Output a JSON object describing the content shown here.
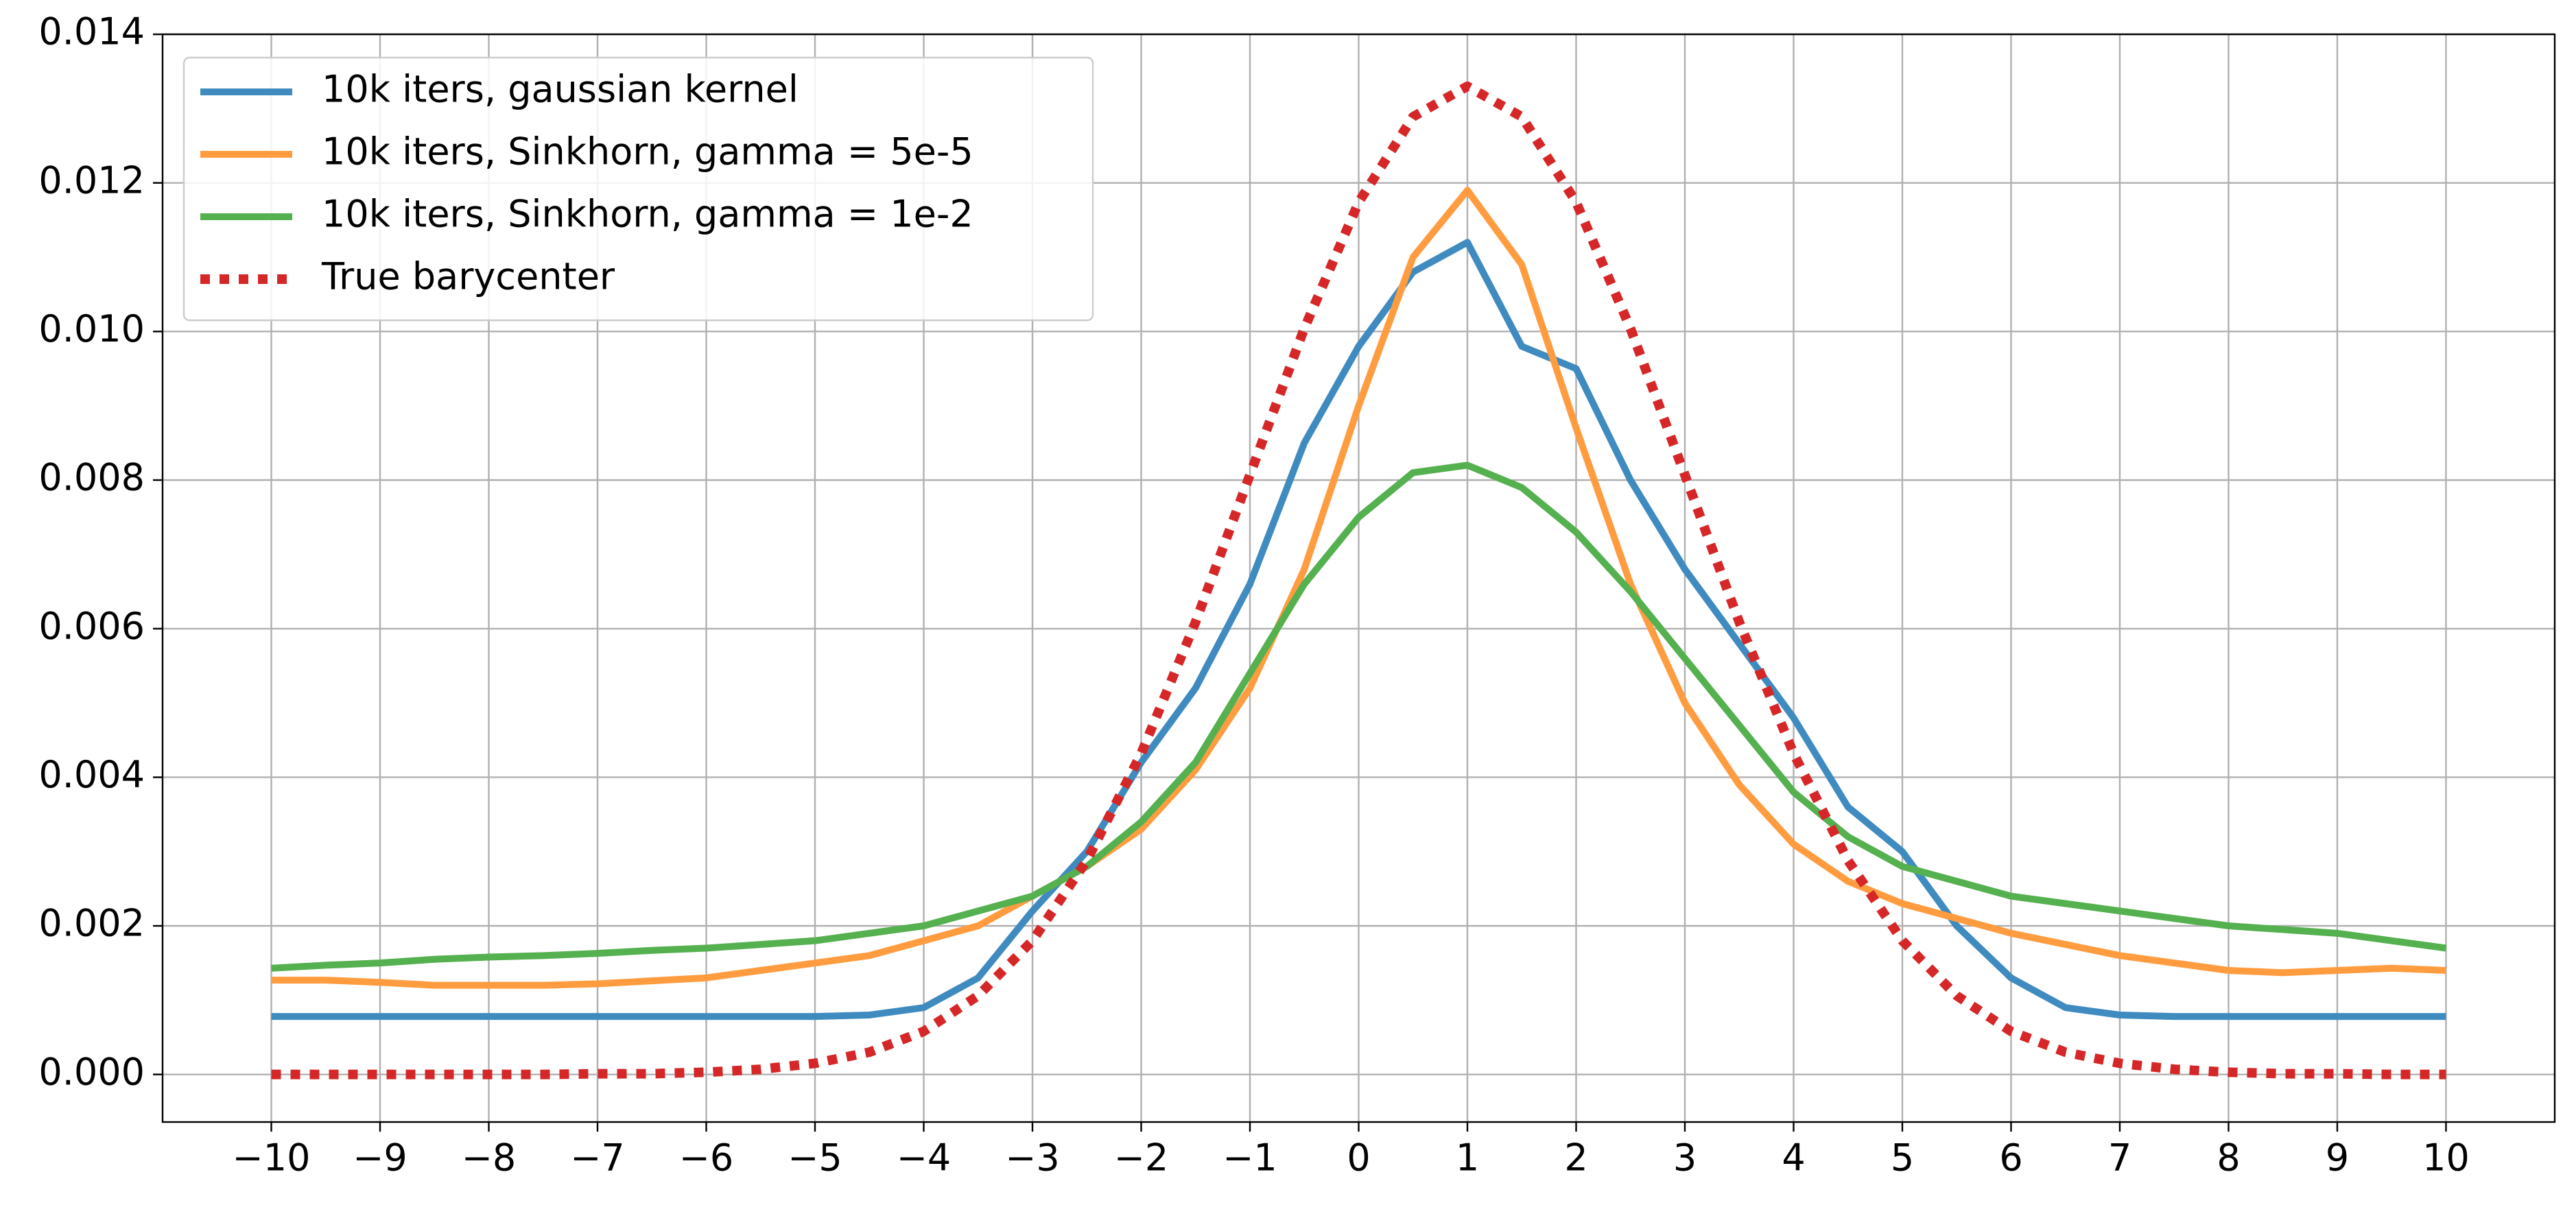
{
  "chart_data": {
    "type": "line",
    "x": [
      -10,
      -9.5,
      -9,
      -8.5,
      -8,
      -7.5,
      -7,
      -6.5,
      -6,
      -5.5,
      -5,
      -4.5,
      -4,
      -3.5,
      -3,
      -2.5,
      -2,
      -1.5,
      -1,
      -0.5,
      0,
      0.5,
      1,
      1.5,
      2,
      2.5,
      3,
      3.5,
      4,
      4.5,
      5,
      5.5,
      6,
      6.5,
      7,
      7.5,
      8,
      8.5,
      9,
      9.5,
      10
    ],
    "series": [
      {
        "name": "10k iters, gaussian kernel",
        "color": "#3f8bc0",
        "linestyle": "solid",
        "values": [
          0.00078,
          0.00078,
          0.00078,
          0.00078,
          0.00078,
          0.00078,
          0.00078,
          0.00078,
          0.00078,
          0.00078,
          0.00078,
          0.0008,
          0.0009,
          0.0013,
          0.0022,
          0.003,
          0.0042,
          0.0052,
          0.0066,
          0.0085,
          0.0098,
          0.0108,
          0.0112,
          0.0098,
          0.0095,
          0.008,
          0.0068,
          0.0058,
          0.0048,
          0.0036,
          0.003,
          0.002,
          0.0013,
          0.0009,
          0.0008,
          0.00078,
          0.00078,
          0.00078,
          0.00078,
          0.00078,
          0.00078
        ]
      },
      {
        "name": "10k iters, Sinkhorn, gamma = 5e-5",
        "color": "#ff9c40",
        "linestyle": "solid",
        "values": [
          0.00127,
          0.00127,
          0.00124,
          0.0012,
          0.0012,
          0.0012,
          0.00122,
          0.00126,
          0.0013,
          0.0014,
          0.0015,
          0.0016,
          0.0018,
          0.002,
          0.0024,
          0.0028,
          0.0033,
          0.0041,
          0.0052,
          0.0068,
          0.009,
          0.011,
          0.0119,
          0.0109,
          0.0087,
          0.0066,
          0.005,
          0.0039,
          0.0031,
          0.0026,
          0.0023,
          0.0021,
          0.0019,
          0.00175,
          0.0016,
          0.0015,
          0.0014,
          0.00137,
          0.0014,
          0.00143,
          0.0014
        ]
      },
      {
        "name": "10k iters, Sinkhorn, gamma = 1e-2",
        "color": "#55b04f",
        "linestyle": "solid",
        "values": [
          0.00143,
          0.00147,
          0.0015,
          0.00155,
          0.00158,
          0.0016,
          0.00163,
          0.00167,
          0.0017,
          0.00175,
          0.0018,
          0.0019,
          0.002,
          0.0022,
          0.0024,
          0.0028,
          0.0034,
          0.0042,
          0.0054,
          0.0066,
          0.0075,
          0.0081,
          0.0082,
          0.0079,
          0.0073,
          0.0065,
          0.0056,
          0.0047,
          0.0038,
          0.0032,
          0.0028,
          0.0026,
          0.0024,
          0.0023,
          0.0022,
          0.0021,
          0.002,
          0.00195,
          0.0019,
          0.0018,
          0.0017
        ]
      },
      {
        "name": "True barycenter",
        "color": "#d62728",
        "linestyle": "dotted",
        "values": [
          0,
          0,
          0,
          0,
          0,
          0,
          1e-05,
          1e-05,
          3e-05,
          7e-05,
          0.00015,
          0.0003,
          0.00058,
          0.00106,
          0.0018,
          0.00288,
          0.00432,
          0.00609,
          0.00807,
          0.01004,
          0.01174,
          0.01289,
          0.0133,
          0.01289,
          0.01174,
          0.01004,
          0.00807,
          0.00609,
          0.00432,
          0.00288,
          0.0018,
          0.00106,
          0.00058,
          0.0003,
          0.00015,
          7e-05,
          3e-05,
          1e-05,
          1e-05,
          0,
          0
        ]
      }
    ],
    "xlim": [
      -11,
      11
    ],
    "ylim": [
      -0.00064,
      0.014
    ],
    "xticks": [
      {
        "value": -10,
        "label": "−10"
      },
      {
        "value": -9,
        "label": "−9"
      },
      {
        "value": -8,
        "label": "−8"
      },
      {
        "value": -7,
        "label": "−7"
      },
      {
        "value": -6,
        "label": "−6"
      },
      {
        "value": -5,
        "label": "−5"
      },
      {
        "value": -4,
        "label": "−4"
      },
      {
        "value": -3,
        "label": "−3"
      },
      {
        "value": -2,
        "label": "−2"
      },
      {
        "value": -1,
        "label": "−1"
      },
      0,
      1,
      2,
      3,
      4,
      5,
      6,
      7,
      8,
      9,
      10
    ],
    "yticks": [
      {
        "value": 0,
        "label": "0.000"
      },
      {
        "value": 0.002,
        "label": "0.002"
      },
      {
        "value": 0.004,
        "label": "0.004"
      },
      {
        "value": 0.006,
        "label": "0.006"
      },
      {
        "value": 0.008,
        "label": "0.008"
      },
      {
        "value": 0.01,
        "label": "0.010"
      },
      {
        "value": 0.012,
        "label": "0.012"
      },
      {
        "value": 0.014,
        "label": "0.014"
      }
    ],
    "grid": true,
    "legend": "upper left"
  }
}
